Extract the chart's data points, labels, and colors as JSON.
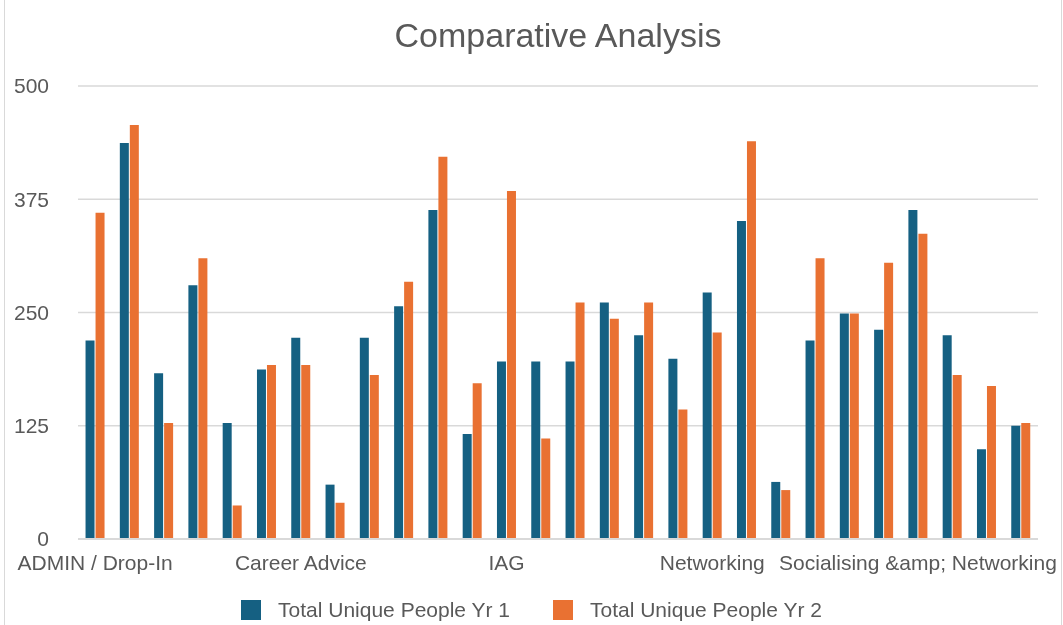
{
  "chart_data": {
    "type": "bar",
    "title": "Comparative Analysis",
    "categories": [
      "ADMIN / Drop-In",
      null,
      null,
      null,
      null,
      null,
      "Career Advice",
      null,
      null,
      null,
      null,
      null,
      "IAG",
      null,
      null,
      null,
      null,
      null,
      "Networking",
      null,
      null,
      null,
      null,
      null,
      "Socialising &amp; Networking",
      null,
      null,
      null
    ],
    "series": [
      {
        "name": "Total Unique People Yr 1",
        "color": "#156082",
        "values": [
          219,
          437,
          183,
          280,
          128,
          187,
          222,
          60,
          222,
          257,
          363,
          116,
          196,
          196,
          196,
          261,
          225,
          199,
          272,
          351,
          63,
          219,
          249,
          231,
          363,
          225,
          99,
          125
        ]
      },
      {
        "name": "Total Unique People Yr 2",
        "color": "#e97132",
        "values": [
          360,
          457,
          128,
          310,
          37,
          192,
          192,
          40,
          181,
          284,
          422,
          172,
          384,
          111,
          261,
          243,
          261,
          143,
          228,
          439,
          54,
          310,
          249,
          305,
          337,
          181,
          169,
          128
        ]
      }
    ],
    "ylim": [
      0,
      500
    ],
    "yticks": [
      0,
      125,
      250,
      375,
      500
    ],
    "grid": "y",
    "legend": "bottom"
  }
}
